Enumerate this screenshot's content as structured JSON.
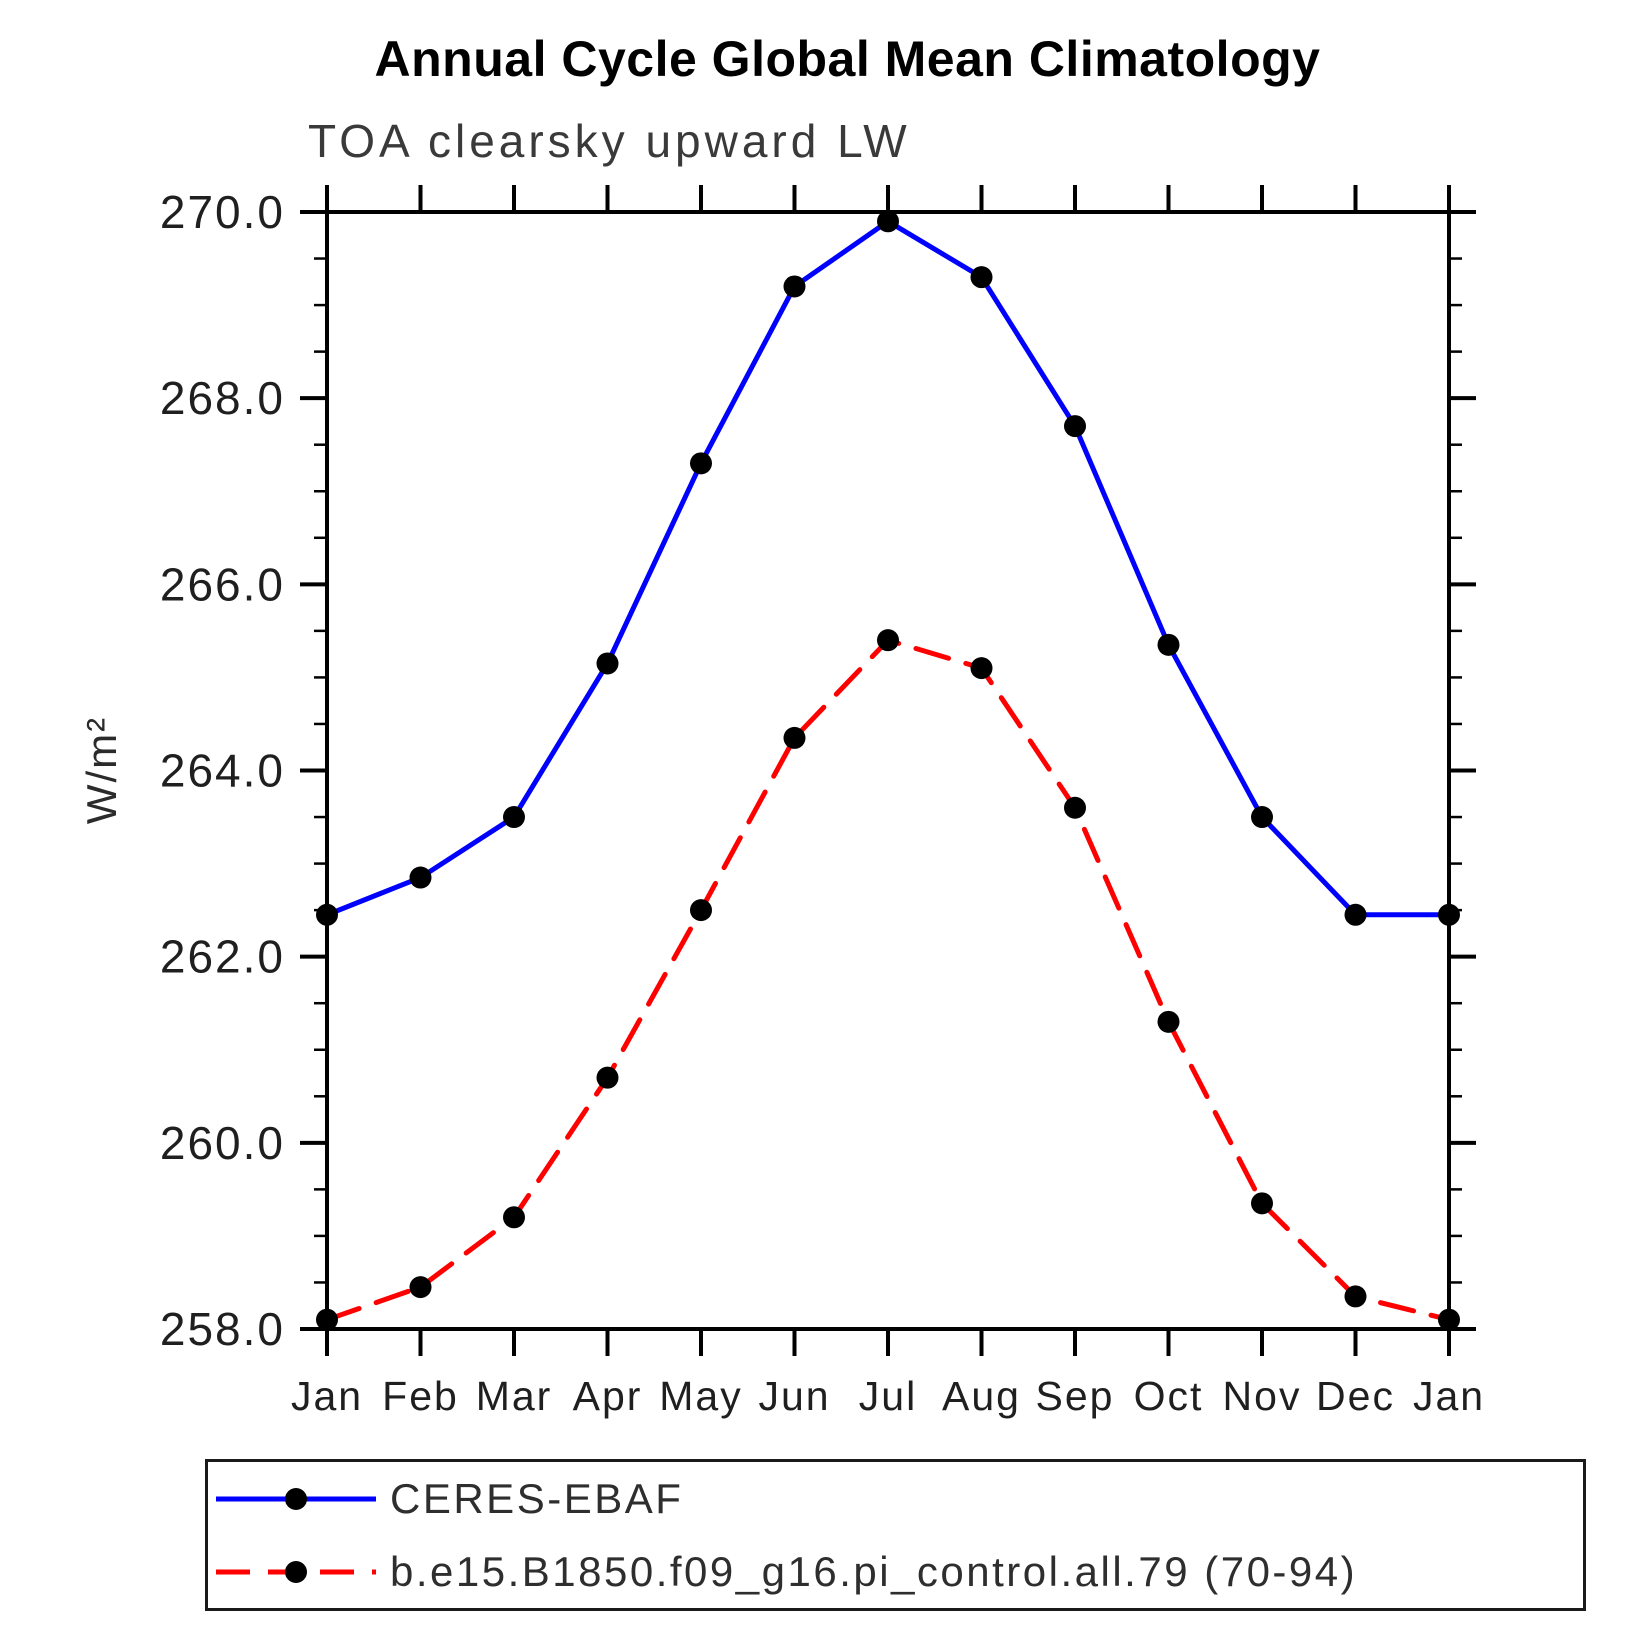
{
  "title": "Annual Cycle Global Mean Climatology",
  "subtitle": "TOA clearsky upward LW",
  "ylabel": "W/m²",
  "chart_data": {
    "type": "line",
    "categories": [
      "Jan",
      "Feb",
      "Mar",
      "Apr",
      "May",
      "Jun",
      "Jul",
      "Aug",
      "Sep",
      "Oct",
      "Nov",
      "Dec",
      "Jan"
    ],
    "series": [
      {
        "name": "CERES-EBAF",
        "color": "#0000ff",
        "line_style": "solid",
        "marker": "circle",
        "marker_color": "#000000",
        "values": [
          262.45,
          262.85,
          263.5,
          265.15,
          267.3,
          269.2,
          269.9,
          269.3,
          267.7,
          265.35,
          263.5,
          262.45,
          262.45
        ]
      },
      {
        "name": "b.e15.B1850.f09_g16.pi_control.all.79 (70-94)",
        "color": "#ff0000",
        "line_style": "dashed",
        "marker": "circle",
        "marker_color": "#000000",
        "values": [
          258.1,
          258.45,
          259.2,
          260.7,
          262.5,
          264.35,
          265.4,
          265.1,
          263.6,
          261.3,
          259.35,
          258.35,
          258.1
        ]
      }
    ],
    "xlabel": "",
    "ylim": [
      258.0,
      270.0
    ],
    "ytick_values": [
      258,
      260,
      262,
      264,
      266,
      268,
      270
    ],
    "ytick_labels": [
      "258.0",
      "260.0",
      "262.0",
      "264.0",
      "266.0",
      "268.0",
      "270.0"
    ],
    "yminor_step": 0.5,
    "grid": false,
    "legend_position": "bottom-left",
    "frame_color": "#000000",
    "tick_label_color": "#1f1f1f"
  }
}
